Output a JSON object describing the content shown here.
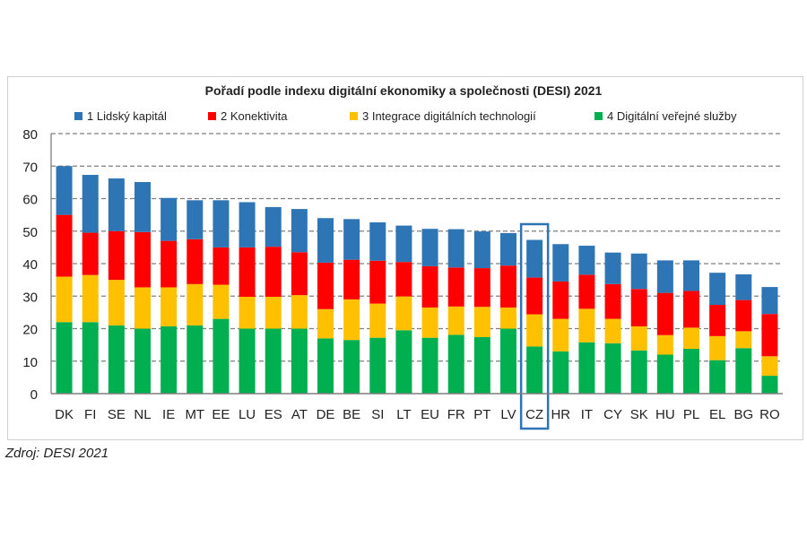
{
  "chart_data": {
    "type": "bar",
    "stacked": true,
    "title": "Pořadí podle indexu digitální ekonomiky a společnosti (DESI) 2021",
    "categories": [
      "DK",
      "FI",
      "SE",
      "NL",
      "IE",
      "MT",
      "EE",
      "LU",
      "ES",
      "AT",
      "DE",
      "BE",
      "SI",
      "LT",
      "EU",
      "FR",
      "PT",
      "LV",
      "CZ",
      "HR",
      "IT",
      "CY",
      "SK",
      "HU",
      "PL",
      "EL",
      "BG",
      "RO"
    ],
    "series": [
      {
        "name": "4 Digitální veřejné služby",
        "color": "#00b050",
        "values": [
          22,
          22,
          21,
          20,
          20.7,
          21,
          23,
          20,
          20,
          20,
          17,
          16.5,
          17.2,
          19.5,
          17.2,
          18.1,
          17.4,
          20,
          14.5,
          13,
          15.8,
          15.5,
          13.3,
          12,
          13.8,
          10.3,
          14,
          5.5
        ]
      },
      {
        "name": "3 Integrace digitálních technologií",
        "color": "#ffc000",
        "values": [
          14,
          14.5,
          14,
          12.7,
          12,
          12.7,
          10.5,
          9.8,
          9.8,
          10.3,
          9,
          12.5,
          10.5,
          10.4,
          9.3,
          8.7,
          9.3,
          6.5,
          9.9,
          10,
          10.3,
          7.5,
          7.4,
          6,
          6.5,
          7.4,
          5.2,
          6
        ]
      },
      {
        "name": "2 Konektivita",
        "color": "#ff0000",
        "values": [
          19,
          13,
          15,
          17,
          14.3,
          13.8,
          11.5,
          15.2,
          15.4,
          13.2,
          14.3,
          12.2,
          13.2,
          10.6,
          12.7,
          12,
          11.9,
          12.9,
          11.3,
          11.5,
          10.5,
          10.7,
          11.5,
          13,
          11.3,
          9.6,
          9.6,
          13
        ]
      },
      {
        "name": "1 Lidský kapitál",
        "color": "#2e75b6",
        "values": [
          15,
          17.8,
          16.2,
          15.4,
          13.2,
          12,
          14.5,
          13.9,
          12.2,
          13.3,
          13.7,
          12.5,
          11.8,
          11.2,
          11.5,
          11.8,
          11.3,
          10,
          11.6,
          11.5,
          8.9,
          9.7,
          10.9,
          10,
          9.4,
          9.9,
          7.9,
          8.3
        ]
      }
    ],
    "legend_order": [
      "1 Lidský kapitál",
      "2 Konektivita",
      "3 Integrace digitálních technologií",
      "4 Digitální veřejné služby"
    ],
    "ylim": [
      0,
      80
    ],
    "yticks": [
      "0",
      "10",
      "20",
      "30",
      "40",
      "50",
      "60",
      "70",
      "80"
    ],
    "grid": true,
    "legend_placement": "top",
    "highlight": "CZ",
    "highlight_color": "#2e75b6"
  },
  "source": "Zdroj: DESI 2021"
}
